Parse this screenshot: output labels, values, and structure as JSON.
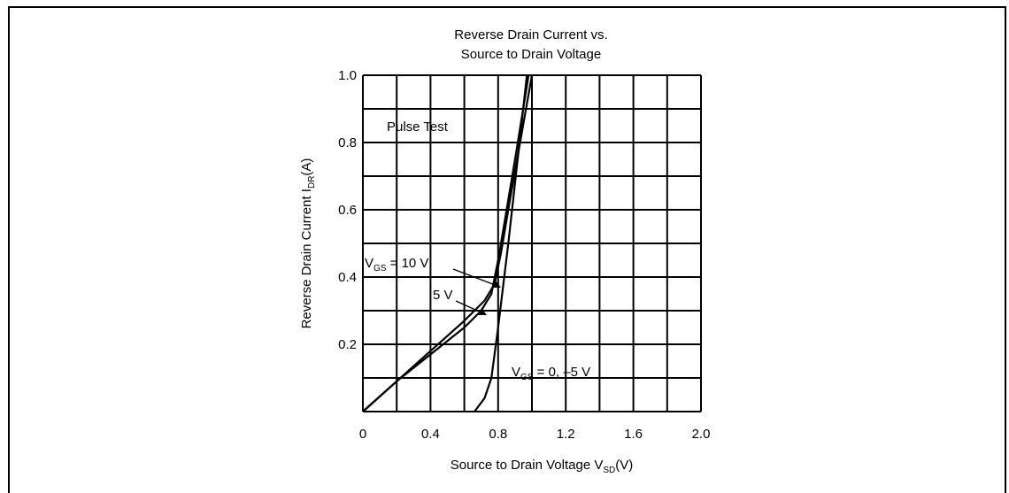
{
  "chart_data": {
    "type": "line",
    "title_lines": [
      "Reverse Drain Current vs.",
      "Source to Drain Voltage"
    ],
    "xlabel": "Source to Drain Voltage  V",
    "xlabel_sub": "SD",
    "xlabel_unit": "(V)",
    "ylabel": "Reverse Drain Current  I",
    "ylabel_sub": "DR",
    "ylabel_unit": "(A)",
    "xlim": [
      0,
      2.0
    ],
    "ylim": [
      0,
      1.0
    ],
    "grid": true,
    "x_ticks": [
      "0",
      "0.4",
      "0.8",
      "1.2",
      "1.6",
      "2.0"
    ],
    "y_ticks": [
      "0.2",
      "0.4",
      "0.6",
      "0.8",
      "1.0"
    ],
    "note": "Pulse Test",
    "series": [
      {
        "name": "V_GS = 10 V",
        "label_main": "V",
        "label_sub": "GS",
        "label_tail": " = 10 V",
        "x": [
          0.0,
          0.2,
          0.4,
          0.6,
          0.72,
          0.78,
          0.82,
          0.87,
          0.93,
          1.0
        ],
        "y": [
          0.0,
          0.09,
          0.18,
          0.27,
          0.33,
          0.38,
          0.48,
          0.63,
          0.8,
          1.0
        ]
      },
      {
        "name": "5 V",
        "label_main": "5 V",
        "x": [
          0.0,
          0.2,
          0.4,
          0.6,
          0.7,
          0.76,
          0.8,
          0.85,
          0.91,
          0.98
        ],
        "y": [
          0.0,
          0.09,
          0.17,
          0.25,
          0.3,
          0.35,
          0.45,
          0.6,
          0.78,
          1.0
        ]
      },
      {
        "name": "V_GS = 0, -5 V",
        "label_main": "V",
        "label_sub": "GS",
        "label_tail": " = 0, –5 V",
        "x": [
          0.66,
          0.72,
          0.76,
          0.8,
          0.86,
          0.92,
          0.97
        ],
        "y": [
          0.0,
          0.04,
          0.1,
          0.25,
          0.5,
          0.77,
          1.0
        ]
      }
    ]
  }
}
